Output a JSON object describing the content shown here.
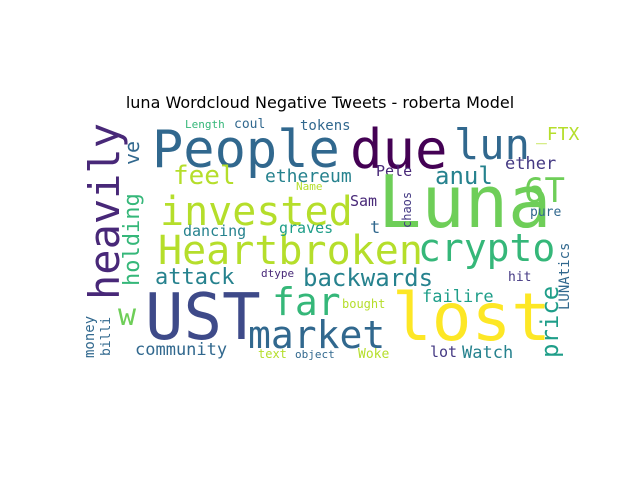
{
  "figure": {
    "title": "luna Wordcloud Negative Tweets - roberta Model"
  },
  "words": [
    {
      "text": "People",
      "color": "#31688e"
    },
    {
      "text": "due",
      "color": "#440154"
    },
    {
      "text": "lun",
      "color": "#31688e"
    },
    {
      "text": "_FTX",
      "color": "#b5de2b"
    },
    {
      "text": "Length",
      "color": "#35b779"
    },
    {
      "text": "coul",
      "color": "#31688e"
    },
    {
      "text": "tokens",
      "color": "#31688e"
    },
    {
      "text": "heavily",
      "color": "#482878"
    },
    {
      "text": "ve",
      "color": "#31688e"
    },
    {
      "text": "feel",
      "color": "#b5de2b"
    },
    {
      "text": "ethereum",
      "color": "#26828e"
    },
    {
      "text": "Pele",
      "color": "#482878"
    },
    {
      "text": "anul",
      "color": "#26828e"
    },
    {
      "text": "ether",
      "color": "#443983"
    },
    {
      "text": "Luna",
      "color": "#6ece58"
    },
    {
      "text": "6T",
      "color": "#6ece58"
    },
    {
      "text": "Name",
      "color": "#b5de2b"
    },
    {
      "text": "holding",
      "color": "#35b779"
    },
    {
      "text": "invested",
      "color": "#b5de2b"
    },
    {
      "text": "Sam",
      "color": "#482878"
    },
    {
      "text": "chaos",
      "color": "#443983"
    },
    {
      "text": "pure",
      "color": "#31688e"
    },
    {
      "text": "Heartbroken",
      "color": "#b5de2b"
    },
    {
      "text": "crypto",
      "color": "#35b779"
    },
    {
      "text": "dancing",
      "color": "#26828e"
    },
    {
      "text": "graves",
      "color": "#1f9e89"
    },
    {
      "text": "t",
      "color": "#31688e"
    },
    {
      "text": "LUNAtics",
      "color": "#31688e"
    },
    {
      "text": "attack",
      "color": "#26828e"
    },
    {
      "text": "dtype",
      "color": "#482878"
    },
    {
      "text": "backwards",
      "color": "#26828e"
    },
    {
      "text": "hit",
      "color": "#443983"
    },
    {
      "text": "far",
      "color": "#35b779"
    },
    {
      "text": "price",
      "color": "#1f9e89"
    },
    {
      "text": "w",
      "color": "#6ece58"
    },
    {
      "text": "UST",
      "color": "#3e4a89"
    },
    {
      "text": "lost",
      "color": "#fde725"
    },
    {
      "text": "failire",
      "color": "#1f9e89"
    },
    {
      "text": "bought",
      "color": "#b5de2b"
    },
    {
      "text": "market",
      "color": "#31688e"
    },
    {
      "text": "money",
      "color": "#31688e"
    },
    {
      "text": "billi",
      "color": "#31688e"
    },
    {
      "text": "community",
      "color": "#31688e"
    },
    {
      "text": "text",
      "color": "#b5de2b"
    },
    {
      "text": "object",
      "color": "#31688e"
    },
    {
      "text": "Woke",
      "color": "#b5de2b"
    },
    {
      "text": "lot",
      "color": "#443983"
    },
    {
      "text": "Watch",
      "color": "#26828e"
    }
  ]
}
